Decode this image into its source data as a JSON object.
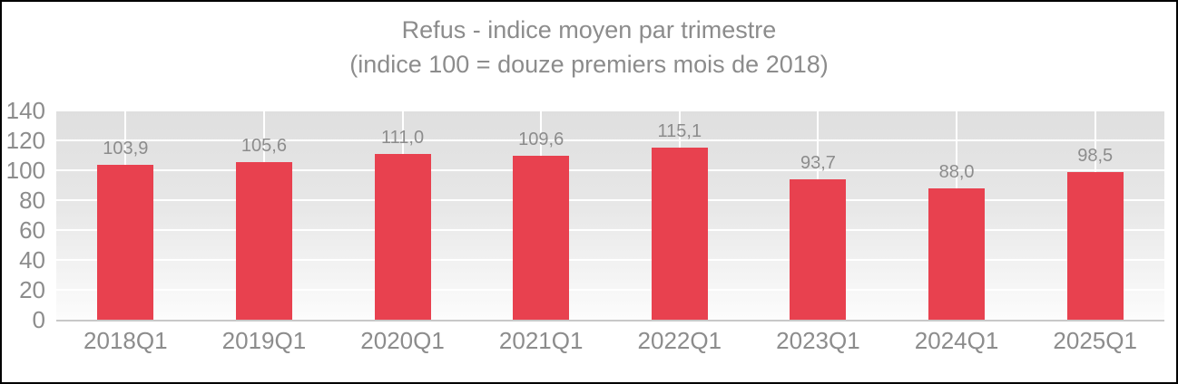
{
  "frame": {
    "border_color": "#000000",
    "background": "#ffffff"
  },
  "chart_data": {
    "type": "bar",
    "title": "Refus - indice moyen par trimestre",
    "subtitle": "(indice 100 = douze premiers mois de 2018)",
    "categories": [
      "2018Q1",
      "2019Q1",
      "2020Q1",
      "2021Q1",
      "2022Q1",
      "2023Q1",
      "2024Q1",
      "2025Q1"
    ],
    "values": [
      103.9,
      105.6,
      111.0,
      109.6,
      115.1,
      93.7,
      88.0,
      98.5
    ],
    "value_labels": [
      "103,9",
      "105,6",
      "111,0",
      "109,6",
      "115,1",
      "93,7",
      "88,0",
      "98,5"
    ],
    "xlabel": "",
    "ylabel": "",
    "ylim": [
      0,
      140
    ],
    "yticks": [
      0,
      20,
      40,
      60,
      80,
      100,
      120,
      140
    ],
    "ytick_labels": [
      "0",
      "20",
      "40",
      "60",
      "80",
      "100",
      "120",
      "140"
    ],
    "grid": "on",
    "legend": "none",
    "bar_color": "#e8414f",
    "text_color": "#8c8c8c",
    "gridline_color": "#ffffff",
    "axis_line_color": "#c8c8c8",
    "plot_gradient_top": "#dfdfdf",
    "plot_gradient_bottom": "#fcfcfc"
  }
}
